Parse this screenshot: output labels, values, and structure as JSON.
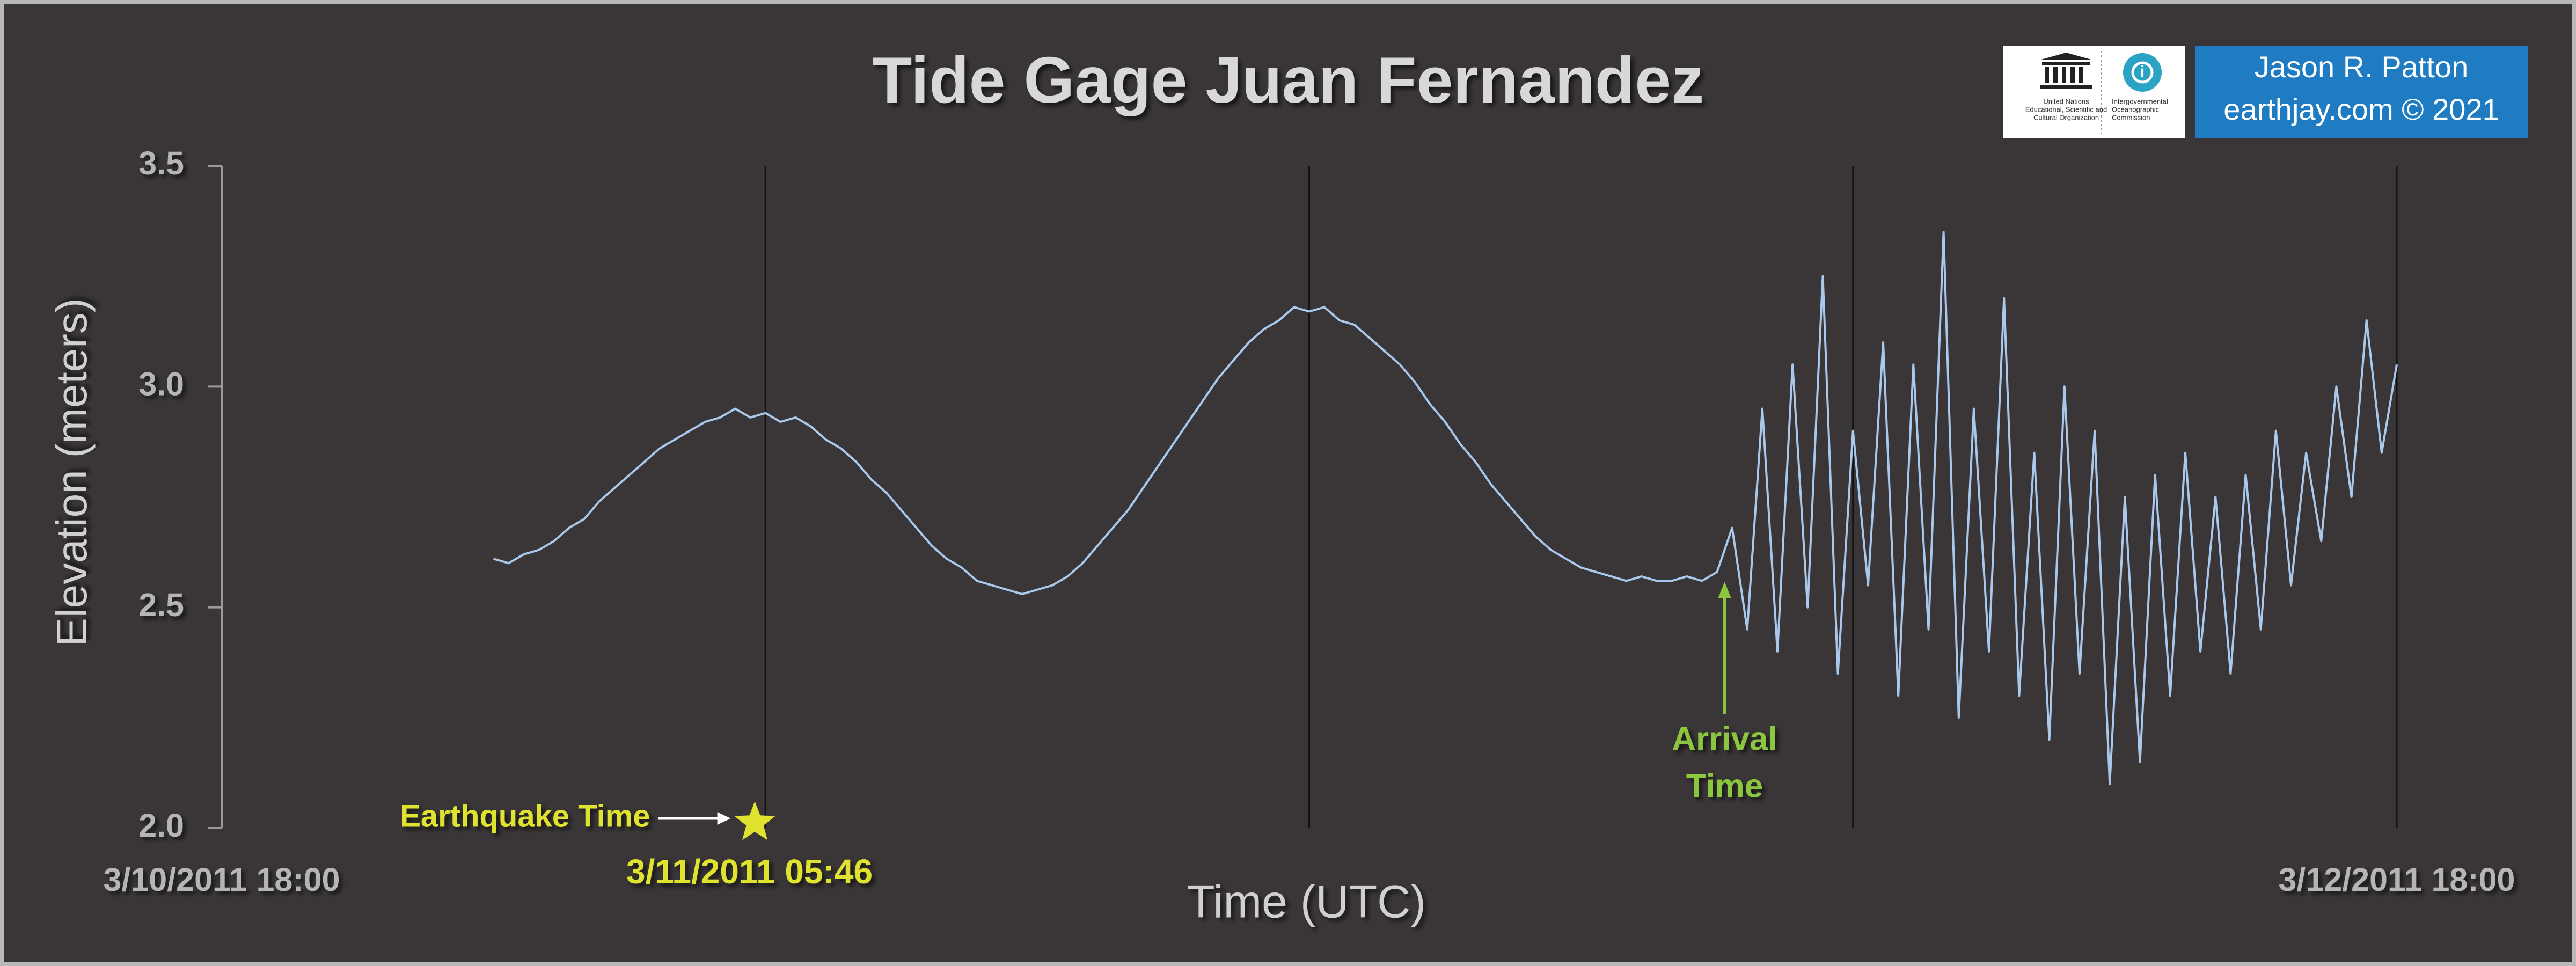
{
  "chart_data": {
    "type": "line",
    "title": "Tide Gage Juan Fernandez",
    "xlabel": "Time (UTC)",
    "ylabel": "Elevation (meters)",
    "color": "#a9c9ec",
    "xlim": [
      "3/10/2011 18:00",
      "3/12/2011 18:00"
    ],
    "xticks": [
      "3/10/2011 18:00",
      {
        "value": "3/11/2011 06:00",
        "label": null
      },
      {
        "value": "3/11/2011 18:00",
        "label": null
      },
      {
        "value": "3/12/2011 06:00",
        "label": null
      },
      "3/12/2011 18:00"
    ],
    "ylim": [
      2.0,
      3.5
    ],
    "yticks": [
      {
        "value": 2.0,
        "label": "2.0"
      },
      2.5,
      {
        "value": 3.0,
        "label": "3.0"
      },
      3.5
    ],
    "grid": "x",
    "x": [
      "3/11/2011 00:00",
      "3/11/2011 00:20",
      "3/11/2011 00:40",
      "3/11/2011 01:00",
      "3/11/2011 01:20",
      "3/11/2011 01:40",
      "3/11/2011 02:00",
      "3/11/2011 02:20",
      "3/11/2011 02:40",
      "3/11/2011 03:00",
      "3/11/2011 03:20",
      "3/11/2011 03:40",
      "3/11/2011 04:00",
      "3/11/2011 04:20",
      "3/11/2011 04:40",
      "3/11/2011 05:00",
      "3/11/2011 05:20",
      "3/11/2011 05:40",
      "3/11/2011 06:00",
      "3/11/2011 06:20",
      "3/11/2011 06:40",
      "3/11/2011 07:00",
      "3/11/2011 07:20",
      "3/11/2011 07:40",
      "3/11/2011 08:00",
      "3/11/2011 08:20",
      "3/11/2011 08:40",
      "3/11/2011 09:00",
      "3/11/2011 09:20",
      "3/11/2011 09:40",
      "3/11/2011 10:00",
      "3/11/2011 10:20",
      "3/11/2011 10:40",
      "3/11/2011 11:00",
      "3/11/2011 11:20",
      "3/11/2011 11:40",
      "3/11/2011 12:00",
      "3/11/2011 12:20",
      "3/11/2011 12:40",
      "3/11/2011 13:00",
      "3/11/2011 13:20",
      "3/11/2011 13:40",
      "3/11/2011 14:00",
      "3/11/2011 14:20",
      "3/11/2011 14:40",
      "3/11/2011 15:00",
      "3/11/2011 15:20",
      "3/11/2011 15:40",
      "3/11/2011 16:00",
      "3/11/2011 16:20",
      "3/11/2011 16:40",
      "3/11/2011 17:00",
      "3/11/2011 17:20",
      "3/11/2011 17:40",
      "3/11/2011 18:00",
      "3/11/2011 18:20",
      "3/11/2011 18:40",
      "3/11/2011 19:00",
      "3/11/2011 19:20",
      "3/11/2011 19:40",
      "3/11/2011 20:00",
      "3/11/2011 20:20",
      "3/11/2011 20:40",
      "3/11/2011 21:00",
      "3/11/2011 21:20",
      "3/11/2011 21:40",
      "3/11/2011 22:00",
      "3/11/2011 22:20",
      "3/11/2011 22:40",
      "3/11/2011 23:00",
      "3/11/2011 23:20",
      "3/11/2011 23:40",
      "3/12/2011 00:00",
      "3/12/2011 00:20",
      "3/12/2011 00:40",
      "3/12/2011 01:00",
      "3/12/2011 01:20",
      "3/12/2011 01:40",
      "3/12/2011 02:00",
      "3/12/2011 02:20",
      "3/12/2011 02:40",
      "3/12/2011 03:00",
      "3/12/2011 03:20",
      "3/12/2011 03:40",
      "3/12/2011 04:00",
      "3/12/2011 04:20",
      "3/12/2011 04:40",
      "3/12/2011 05:00",
      "3/12/2011 05:20",
      "3/12/2011 05:40",
      "3/12/2011 06:00",
      "3/12/2011 06:20",
      "3/12/2011 06:40",
      "3/12/2011 07:00",
      "3/12/2011 07:20",
      "3/12/2011 07:40",
      "3/12/2011 08:00",
      "3/12/2011 08:20",
      "3/12/2011 08:40",
      "3/12/2011 09:00",
      "3/12/2011 09:20",
      "3/12/2011 09:40",
      "3/12/2011 10:00",
      "3/12/2011 10:20",
      "3/12/2011 10:40",
      "3/12/2011 11:00",
      "3/12/2011 11:20",
      "3/12/2011 11:40",
      "3/12/2011 12:00",
      "3/12/2011 12:20",
      "3/12/2011 12:40",
      "3/12/2011 13:00",
      "3/12/2011 13:20",
      "3/12/2011 13:40",
      "3/12/2011 14:00",
      "3/12/2011 14:20",
      "3/12/2011 14:40",
      "3/12/2011 15:00",
      "3/12/2011 15:20",
      "3/12/2011 15:40",
      "3/12/2011 16:00",
      "3/12/2011 16:20",
      "3/12/2011 16:40",
      "3/12/2011 17:00",
      "3/12/2011 17:20",
      "3/12/2011 17:40",
      "3/12/2011 18:00"
    ],
    "values": [
      2.61,
      2.6,
      2.62,
      2.63,
      2.65,
      2.68,
      2.7,
      2.74,
      2.77,
      2.8,
      2.83,
      2.86,
      2.88,
      2.9,
      2.92,
      2.93,
      2.95,
      2.93,
      2.94,
      2.92,
      2.93,
      2.91,
      2.88,
      2.86,
      2.83,
      2.79,
      2.76,
      2.72,
      2.68,
      2.64,
      2.61,
      2.59,
      2.56,
      2.55,
      2.54,
      2.53,
      2.54,
      2.55,
      2.57,
      2.6,
      2.64,
      2.68,
      2.72,
      2.77,
      2.82,
      2.87,
      2.92,
      2.97,
      3.02,
      3.06,
      3.1,
      3.13,
      3.15,
      3.18,
      3.17,
      3.18,
      3.15,
      3.14,
      3.11,
      3.08,
      3.05,
      3.01,
      2.96,
      2.92,
      2.87,
      2.83,
      2.78,
      2.74,
      2.7,
      2.66,
      2.63,
      2.61,
      2.59,
      2.58,
      2.57,
      2.56,
      2.57,
      2.56,
      2.56,
      2.57,
      2.56,
      2.58,
      2.68,
      2.45,
      2.95,
      2.4,
      3.05,
      2.5,
      3.25,
      2.35,
      2.9,
      2.55,
      3.1,
      2.3,
      3.05,
      2.45,
      3.35,
      2.25,
      2.95,
      2.4,
      3.2,
      2.3,
      2.85,
      2.2,
      3.0,
      2.35,
      2.9,
      2.1,
      2.75,
      2.15,
      2.8,
      2.3,
      2.85,
      2.4,
      2.75,
      2.35,
      2.8,
      2.45,
      2.9,
      2.55,
      2.85,
      2.65,
      3.0,
      2.75,
      3.15,
      2.85,
      3.05
    ],
    "annotations": [
      {
        "text": "Earthquake Time",
        "x": "3/11/2011 05:46",
        "y": 2.0,
        "label": "3/11/2011 05:46",
        "color": "#dfe22e"
      },
      {
        "text": [
          "Arrival",
          "Time"
        ],
        "x": "3/12/2011 03:10",
        "y": 2.57,
        "color": "#8cc63f"
      }
    ],
    "credits": {
      "author": "Jason R. Patton",
      "site": "earthjay.com © 2021",
      "unesco": [
        "United Nations",
        "Educational, Scientific and",
        "Cultural Organization"
      ],
      "ioc": [
        "Intergovernmental",
        "Oceanographic",
        "Commission"
      ]
    }
  }
}
